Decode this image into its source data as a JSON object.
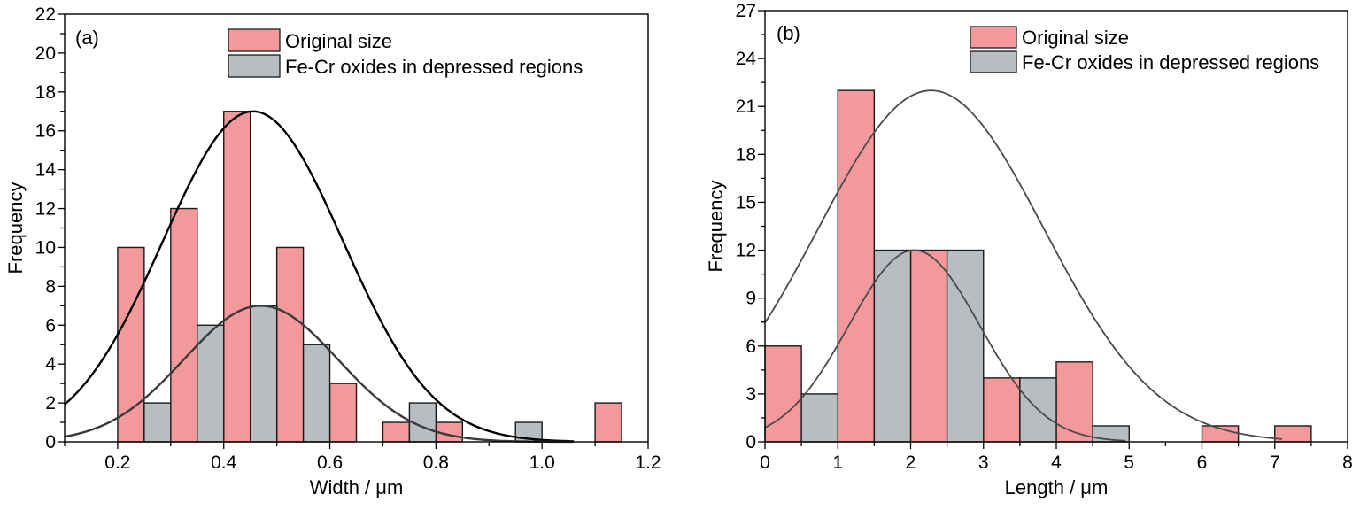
{
  "chart_data": [
    {
      "type": "bar",
      "panel_label": "(a)",
      "xlabel": "Width / μm",
      "ylabel": "Frequency",
      "xlim": [
        0.1,
        1.2
      ],
      "ylim": [
        0,
        22
      ],
      "x_ticks": [
        0.2,
        0.4,
        0.6,
        0.8,
        1.0,
        1.2
      ],
      "x_tick_labels": [
        "0.2",
        "0.4",
        "0.6",
        "0.8",
        "1.0",
        "1.2"
      ],
      "y_ticks": [
        0,
        2,
        4,
        6,
        8,
        10,
        12,
        14,
        16,
        18,
        20,
        22
      ],
      "y_tick_labels": [
        "0",
        "2",
        "4",
        "6",
        "8",
        "10",
        "12",
        "14",
        "16",
        "18",
        "20",
        "22"
      ],
      "grid": false,
      "legend_position": "top-center",
      "series": [
        {
          "name": "Original size",
          "color": "#f4999b",
          "bins": [
            {
              "x0": 0.2,
              "x1": 0.25,
              "value": 10
            },
            {
              "x0": 0.3,
              "x1": 0.35,
              "value": 12
            },
            {
              "x0": 0.4,
              "x1": 0.45,
              "value": 17
            },
            {
              "x0": 0.5,
              "x1": 0.55,
              "value": 10
            },
            {
              "x0": 0.6,
              "x1": 0.65,
              "value": 3
            },
            {
              "x0": 0.7,
              "x1": 0.75,
              "value": 1
            },
            {
              "x0": 0.8,
              "x1": 0.85,
              "value": 1
            },
            {
              "x0": 1.1,
              "x1": 1.15,
              "value": 2
            }
          ]
        },
        {
          "name": "Fe-Cr oxides in depressed regions",
          "color": "#b8bdc2",
          "bins": [
            {
              "x0": 0.25,
              "x1": 0.3,
              "value": 2
            },
            {
              "x0": 0.35,
              "x1": 0.4,
              "value": 6
            },
            {
              "x0": 0.45,
              "x1": 0.5,
              "value": 7
            },
            {
              "x0": 0.55,
              "x1": 0.6,
              "value": 5
            },
            {
              "x0": 0.75,
              "x1": 0.8,
              "value": 2
            },
            {
              "x0": 0.95,
              "x1": 1.0,
              "value": 1
            }
          ]
        }
      ],
      "fits": [
        {
          "series": "Original size",
          "mean": 0.455,
          "sd": 0.17,
          "peak": 17,
          "x_range": [
            0.1,
            1.06
          ],
          "color": "#000000"
        },
        {
          "series": "Fe-Cr oxides in depressed regions",
          "mean": 0.47,
          "sd": 0.145,
          "peak": 7,
          "x_range": [
            0.1,
            1.06
          ],
          "color": "#3a3a3a"
        }
      ]
    },
    {
      "type": "bar",
      "panel_label": "(b)",
      "xlabel": "Length / μm",
      "ylabel": "Frequency",
      "xlim": [
        0,
        8
      ],
      "ylim": [
        0,
        27
      ],
      "x_ticks": [
        0,
        1,
        2,
        3,
        4,
        5,
        6,
        7,
        8
      ],
      "x_tick_labels": [
        "0",
        "1",
        "2",
        "3",
        "4",
        "5",
        "6",
        "7",
        "8"
      ],
      "y_ticks": [
        0,
        3,
        6,
        9,
        12,
        15,
        18,
        21,
        24,
        27
      ],
      "y_tick_labels": [
        "0",
        "3",
        "6",
        "9",
        "12",
        "15",
        "18",
        "21",
        "24",
        "27"
      ],
      "grid": false,
      "legend_position": "top-center",
      "series": [
        {
          "name": "Original size",
          "color": "#f4999b",
          "bins": [
            {
              "x0": 0,
              "x1": 0.5,
              "value": 6
            },
            {
              "x0": 1,
              "x1": 1.5,
              "value": 22
            },
            {
              "x0": 2,
              "x1": 2.5,
              "value": 12
            },
            {
              "x0": 3,
              "x1": 3.5,
              "value": 4
            },
            {
              "x0": 4,
              "x1": 4.5,
              "value": 5
            },
            {
              "x0": 6,
              "x1": 6.5,
              "value": 1
            },
            {
              "x0": 7,
              "x1": 7.5,
              "value": 1
            }
          ]
        },
        {
          "name": "Fe-Cr oxides in depressed regions",
          "color": "#b8bdc2",
          "bins": [
            {
              "x0": 0.5,
              "x1": 1,
              "value": 3
            },
            {
              "x0": 1.5,
              "x1": 2,
              "value": 12
            },
            {
              "x0": 2.5,
              "x1": 3,
              "value": 12
            },
            {
              "x0": 3.5,
              "x1": 4,
              "value": 4
            },
            {
              "x0": 4.5,
              "x1": 5,
              "value": 1
            }
          ]
        }
      ],
      "fits": [
        {
          "series": "Original size",
          "mean": 2.28,
          "sd": 1.55,
          "peak": 22,
          "x_range": [
            0,
            7.1
          ],
          "color": "#4a4a4a"
        },
        {
          "series": "Fe-Cr oxides in depressed regions",
          "mean": 2.05,
          "sd": 0.9,
          "peak": 12,
          "x_range": [
            0,
            4.95
          ],
          "color": "#4a4a4a"
        }
      ]
    }
  ]
}
